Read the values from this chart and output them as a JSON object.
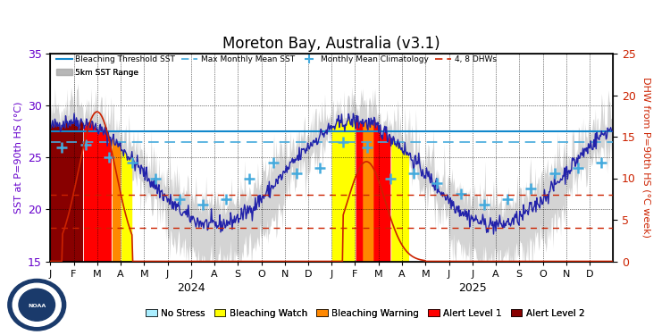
{
  "title": "Moreton Bay, Australia (v3.1)",
  "ylabel_left": "SST at P=90th HS (°C)",
  "ylabel_right": "DHW from P=90th HS (°C week)",
  "ylim_left": [
    15,
    35
  ],
  "ylim_right": [
    0,
    25
  ],
  "bleaching_threshold": 27.5,
  "max_monthly_mean": 26.5,
  "background_color": "#ffffff",
  "sst_line_color": "#2222aa",
  "sst_range_color": "#aaaaaa",
  "threshold_line_color": "#1188cc",
  "max_mean_line_color": "#44aadd",
  "climatology_color": "#44aadd",
  "dhw_line_color": "#cc2200",
  "colors": {
    "no_stress": "#aaeeff",
    "watch": "#ffff00",
    "warning": "#ff8800",
    "alert1": "#ff0000",
    "alert2": "#880000"
  },
  "n_days": 730,
  "clim_sst": [
    26.0,
    26.2,
    25.0,
    24.5,
    23.0,
    21.0,
    20.5,
    21.0,
    23.0,
    24.5,
    23.5,
    24.0,
    26.5,
    26.0,
    23.0,
    23.5,
    22.5,
    21.5,
    20.5,
    21.0,
    22.0,
    23.5,
    24.0,
    24.5
  ]
}
